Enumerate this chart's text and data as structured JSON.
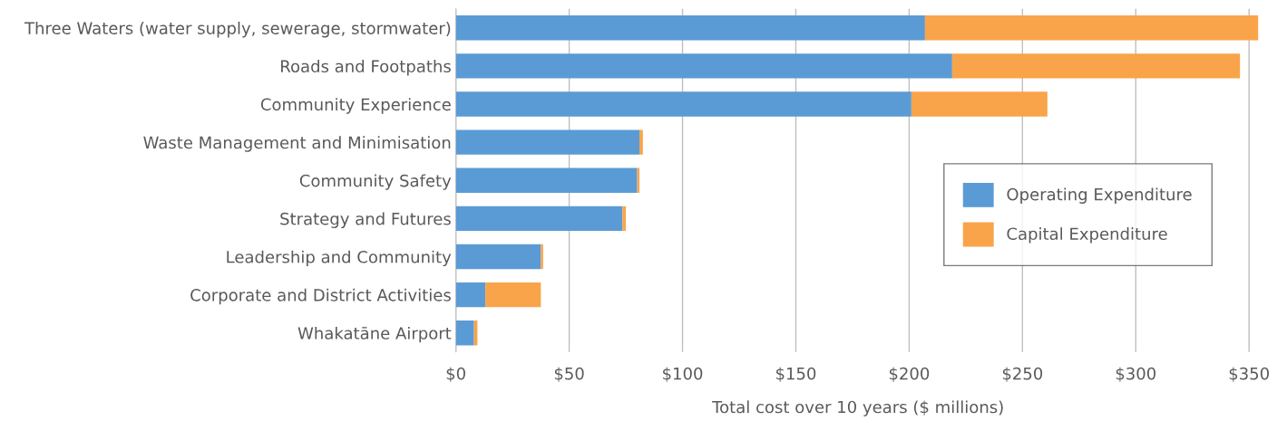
{
  "chart_data": {
    "type": "bar",
    "orientation": "horizontal",
    "stacked": true,
    "categories": [
      "Three Waters (water supply, sewerage, stormwater)",
      "Roads and Footpaths",
      "Community Experience",
      "Waste Management and Minimisation",
      "Community Safety",
      "Strategy and Futures",
      "Leadership and Community",
      "Corporate and District Activities",
      "Whakatāne Airport"
    ],
    "series": [
      {
        "name": "Operating Expenditure",
        "color": "#5b9bd5",
        "values": [
          207,
          219,
          201,
          81,
          80,
          73.5,
          37.5,
          13,
          8
        ]
      },
      {
        "name": "Capital Expenditure",
        "color": "#f9a44a",
        "values": [
          147,
          127,
          60,
          1.5,
          1,
          1.5,
          1,
          24.5,
          1.5
        ]
      }
    ],
    "xlabel": "Total cost over 10 years ($ millions)",
    "xlim": [
      0,
      355
    ],
    "xticks": [
      {
        "value": 0,
        "label": "$0"
      },
      {
        "value": 50,
        "label": "$50"
      },
      {
        "value": 100,
        "label": "$100"
      },
      {
        "value": 150,
        "label": "$150"
      },
      {
        "value": 200,
        "label": "$200"
      },
      {
        "value": 250,
        "label": "$250"
      },
      {
        "value": 300,
        "label": "$300"
      },
      {
        "value": 350,
        "label": "$350"
      }
    ],
    "grid": "x",
    "legend": "center right"
  }
}
